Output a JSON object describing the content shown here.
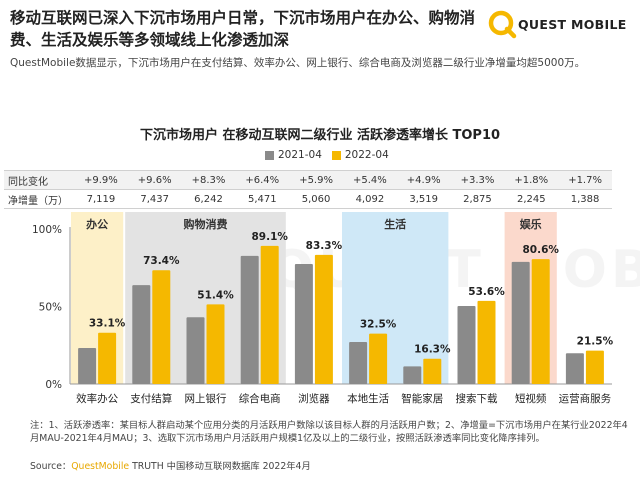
{
  "headline": "移动互联网已深入下沉市场用户日常，下沉市场用户在办公、购物消费、生活及娱乐等多领域线上化渗透加深",
  "logo": {
    "text": "QUEST MOBILE"
  },
  "subline": "QuestMobile数据显示，下沉市场用户在支付结算、效率办公、网上银行、综合电商及浏览器二级行业净增量均超5000万。",
  "watermark": "QUEST MOBILE",
  "colors": {
    "series_2021": "#8a8a8a",
    "series_2022": "#f5b800",
    "office_bg": "#fdf0c8",
    "shopping_bg": "#e3e3e3",
    "life_bg": "#cfe8f7",
    "ent_bg": "#fbd9cc"
  },
  "table": {
    "row1_label": "同比变化",
    "row2_label": "净增量（万）",
    "yoy": [
      "+9.9%",
      "+9.6%",
      "+8.3%",
      "+6.4%",
      "+5.9%",
      "+5.4%",
      "+4.9%",
      "+3.3%",
      "+1.8%",
      "+1.7%"
    ],
    "net": [
      "7,119",
      "7,437",
      "6,242",
      "5,471",
      "5,060",
      "4,092",
      "3,519",
      "2,875",
      "2,245",
      "1,388"
    ]
  },
  "chart_data": {
    "type": "bar",
    "title": "下沉市场用户 在移动互联网二级行业 活跃渗透率增长 TOP10",
    "categories": [
      "效率办公",
      "支付结算",
      "网上银行",
      "综合电商",
      "浏览器",
      "本地生活",
      "智能家居",
      "搜索下载",
      "短视频",
      "运营商服务"
    ],
    "series": [
      {
        "name": "2021-04",
        "values": [
          23.2,
          63.8,
          43.1,
          82.7,
          77.4,
          27.1,
          11.4,
          50.3,
          78.8,
          19.8
        ]
      },
      {
        "name": "2022-04",
        "values": [
          33.1,
          73.4,
          51.4,
          89.1,
          83.3,
          32.5,
          16.3,
          53.6,
          80.6,
          21.5
        ]
      }
    ],
    "data_labels": [
      "33.1%",
      "73.4%",
      "51.4%",
      "89.1%",
      "83.3%",
      "32.5%",
      "16.3%",
      "53.6%",
      "80.6%",
      "21.5%"
    ],
    "y_ticks": [
      "0%",
      "50%",
      "100%"
    ],
    "ylim": [
      0,
      100
    ],
    "groups": [
      {
        "label": "办公",
        "start": 0,
        "end": 0
      },
      {
        "label": "购物消费",
        "start": 1,
        "end": 3
      },
      {
        "label": "生活",
        "start": 5,
        "end": 6
      },
      {
        "label": "娱乐",
        "start": 8,
        "end": 8
      }
    ],
    "legend_position": "top-center",
    "grid": false
  },
  "footnote": "注：1、活跃渗透率：某目标人群启动某个应用分类的月活跃用户数除以该目标人群的月活跃用户数；2、净增量=下沉市场用户在某行业2022年4月MAU-2021年4月MAU；3、选取下沉市场用户月活跃用户规模1亿及以上的二级行业，按照活跃渗透率同比变化降序排列。",
  "source": {
    "prefix": "Source：",
    "brand": "QuestMobile",
    "rest": " TRUTH 中国移动互联网数据库 2022年4月"
  }
}
